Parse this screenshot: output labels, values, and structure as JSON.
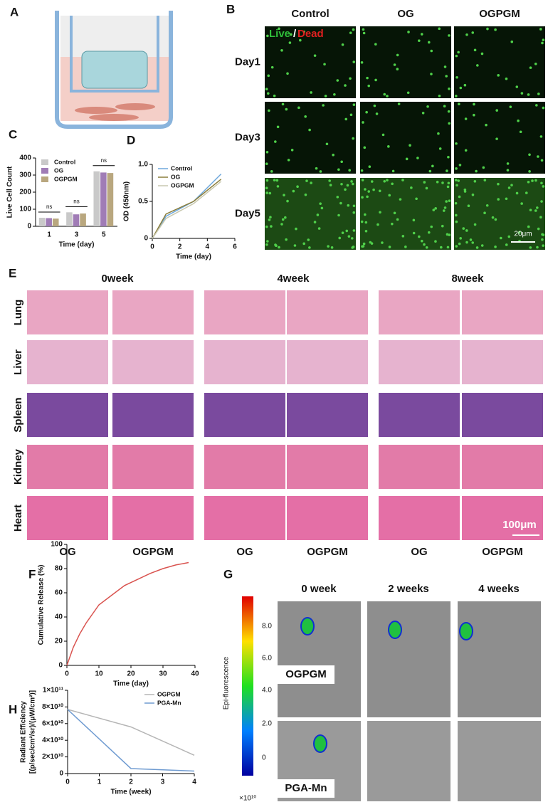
{
  "panel_labels": [
    "A",
    "B",
    "C",
    "D",
    "E",
    "F",
    "G",
    "H"
  ],
  "panel_b": {
    "columns": [
      "Control",
      "OG",
      "OGPGM"
    ],
    "rows": [
      "Day1",
      "Day3",
      "Day5"
    ],
    "legend_live": "Live",
    "legend_sep": "/",
    "legend_dead": "Dead",
    "scale_bar": "20μm"
  },
  "panel_e": {
    "timepoints": [
      "0week",
      "4week",
      "8week"
    ],
    "organs": [
      "Lung",
      "Liver",
      "Spleen",
      "Kidney",
      "Heart"
    ],
    "groups": [
      "OG",
      "OGPGM",
      "OG",
      "OGPGM",
      "OG",
      "OGPGM"
    ],
    "scale_bar": "100μm"
  },
  "panel_g": {
    "timepoints": [
      "0 week",
      "2 weeks",
      "4 weeks"
    ],
    "groups": [
      "OGPGM",
      "PGA-Mn"
    ],
    "colorbar_label": "Epi-fluorescence",
    "colorbar_ticks": [
      "8.0",
      "6.0",
      "4.0",
      "2.0",
      "0"
    ],
    "multiplier": "×10¹⁰"
  },
  "chart_data": [
    {
      "type": "bar",
      "categories": [
        "1",
        "3",
        "5"
      ],
      "series": [
        {
          "name": "Control",
          "color": "#c9c9c9",
          "values": [
            50,
            82,
            322
          ]
        },
        {
          "name": "OG",
          "color": "#a07cb6",
          "values": [
            48,
            70,
            315
          ]
        },
        {
          "name": "OGPGM",
          "color": "#b9a77f",
          "values": [
            45,
            75,
            312
          ]
        }
      ],
      "ylim": [
        0,
        400
      ],
      "yticks": [
        0,
        100,
        200,
        300,
        400
      ],
      "xlabel": "Time (day)",
      "ylabel": [
        "Live Cell Count"
      ],
      "annotations": [
        "ns",
        "ns",
        "ns"
      ],
      "legend": "upper left"
    },
    {
      "type": "line",
      "x": [
        0,
        1,
        3,
        5
      ],
      "series": [
        {
          "name": "Control",
          "color": "#6fa8dc",
          "values": [
            0,
            0.3,
            0.5,
            0.87
          ]
        },
        {
          "name": "OG",
          "color": "#8b7d3a",
          "values": [
            0,
            0.33,
            0.5,
            0.8
          ]
        },
        {
          "name": "OGPGM",
          "color": "#c9c9b0",
          "values": [
            0,
            0.27,
            0.47,
            0.77
          ]
        }
      ],
      "xlim": [
        0,
        6
      ],
      "xticks": [
        0,
        2,
        4,
        6
      ],
      "ylim": [
        0,
        1
      ],
      "yticks": [
        0,
        0.5,
        {
          "value": 1,
          "label": "1.0"
        }
      ],
      "xlabel": "Time (day)",
      "ylabel": [
        "OD (450nm)"
      ],
      "legend": "upper left"
    },
    {
      "type": "line",
      "x": [
        0,
        2,
        4,
        6,
        10,
        14,
        18,
        22,
        26,
        30,
        34,
        38
      ],
      "values": [
        0,
        15,
        26,
        35,
        50,
        58,
        66,
        71,
        76,
        80,
        83,
        85
      ],
      "color": "#d9534f",
      "xlim": [
        0,
        40
      ],
      "xticks": [
        0,
        10,
        20,
        30,
        40
      ],
      "ylim": [
        0,
        100
      ],
      "yticks": [
        0,
        20,
        40,
        60,
        80,
        100
      ],
      "xlabel": "Time (day)",
      "ylabel": [
        "Cumulative Release (%)"
      ]
    },
    {
      "type": "line",
      "x": [
        0,
        2,
        4
      ],
      "series": [
        {
          "name": "OGPGM",
          "color": "#b5b5b5",
          "values": [
            77000000000,
            56000000000,
            22000000000
          ]
        },
        {
          "name": "PGA-Mn",
          "color": "#6f9bd1",
          "values": [
            77000000000,
            6000000000,
            3000000000
          ]
        }
      ],
      "xlim": [
        0,
        4
      ],
      "xticks": [
        0,
        1,
        2,
        3,
        4
      ],
      "ylim": [
        0,
        100000000000
      ],
      "yticks": [
        0,
        {
          "value": 20000000000,
          "label": "2×10¹⁰"
        },
        {
          "value": 40000000000,
          "label": "4×10¹⁰"
        },
        {
          "value": 60000000000,
          "label": "6×10¹⁰"
        },
        {
          "value": 80000000000,
          "label": "8×10¹⁰"
        },
        {
          "value": 100000000000,
          "label": "1×10¹¹"
        }
      ],
      "xlabel": "Time (week)",
      "ylabel": [
        "Radiant Efficiency",
        "[(p/sec/cm²/sr)/(μW/cm²)]"
      ],
      "legend": "upper right"
    }
  ]
}
